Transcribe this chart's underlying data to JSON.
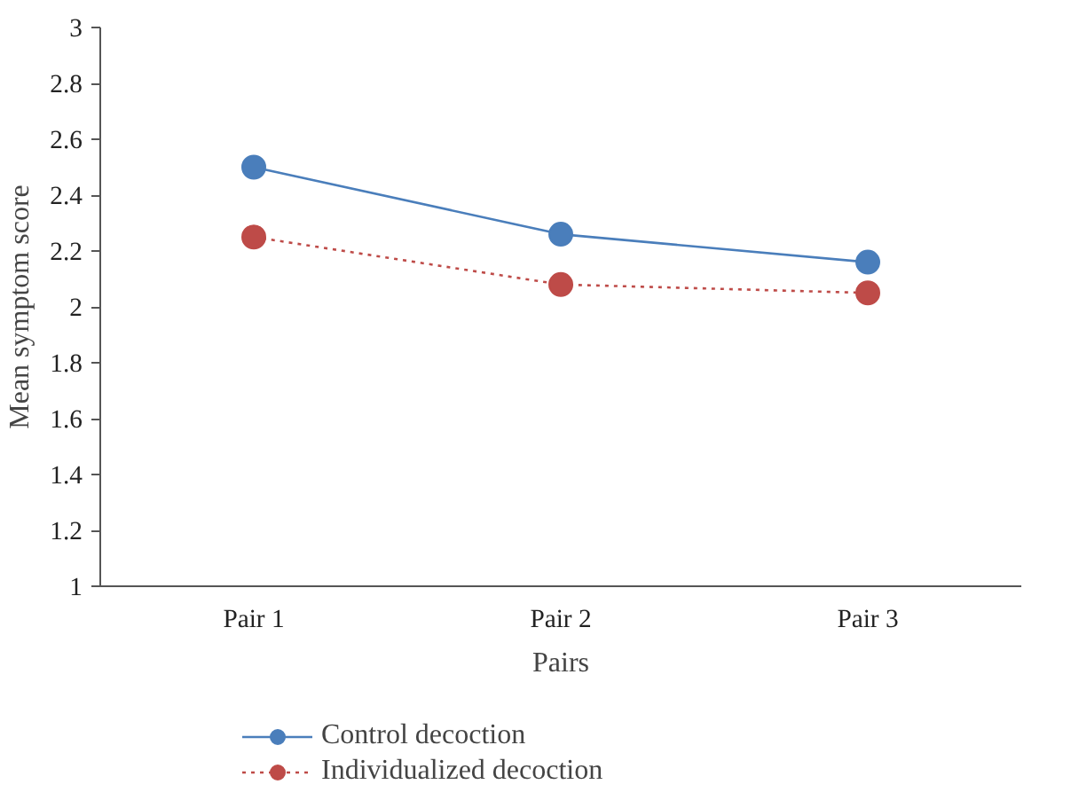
{
  "chart_data": {
    "type": "line",
    "categories": [
      "Pair 1",
      "Pair 2",
      "Pair 3"
    ],
    "xlabel": "Pairs",
    "ylabel": "Mean symptom score",
    "ylim": [
      1,
      3
    ],
    "yticks": [
      1,
      1.2,
      1.4,
      1.6,
      1.8,
      2,
      2.2,
      2.4,
      2.6,
      2.8,
      3
    ],
    "grid": false,
    "legend": "bottom left",
    "marker": "circle",
    "series": [
      {
        "name": "Control decoction",
        "color": "#4a7ebb",
        "values": [
          2.5,
          2.26,
          2.16
        ],
        "line_style": "solid"
      },
      {
        "name": "Individualized decoction",
        "color": "#be4b48",
        "values": [
          2.25,
          2.08,
          2.05
        ],
        "line_style": "dotted"
      }
    ]
  }
}
